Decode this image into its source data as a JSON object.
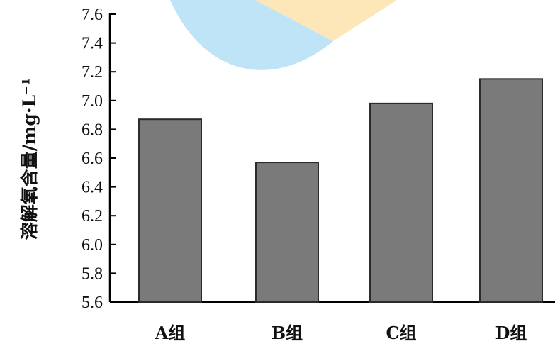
{
  "chart_data": {
    "type": "bar",
    "categories": [
      "A组",
      "B组",
      "C组",
      "D组"
    ],
    "values": [
      6.87,
      6.57,
      6.98,
      7.15
    ],
    "title": "",
    "xlabel": "",
    "ylabel": "溶解氧含量/mg·L⁻¹",
    "ylim": [
      5.6,
      7.6
    ],
    "yticks": [
      "5.6",
      "5.8",
      "6.0",
      "6.2",
      "6.4",
      "6.6",
      "6.8",
      "7.0",
      "7.2",
      "7.4",
      "7.6"
    ],
    "grid": false,
    "legend": "none",
    "colors": {
      "bar_fill": "#7a7a7a",
      "bar_stroke": "#2b2b2b",
      "axis": "#000000",
      "watermark_blue": "#bfe3f7",
      "watermark_yellow": "#fde7b8"
    }
  }
}
